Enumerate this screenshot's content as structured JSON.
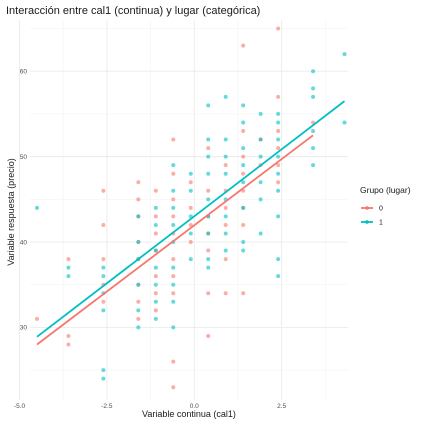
{
  "chart_data": {
    "type": "scatter",
    "title": "Interacción entre cal1 (continua) y lugar (categórica)",
    "xlabel": "Variable continua (cal1)",
    "ylabel": "Variable respuesta (precio)",
    "xlim": [
      -4.7,
      4.4
    ],
    "ylim": [
      21.5,
      66
    ],
    "x_ticks": [
      -5.0,
      -2.5,
      0.0,
      2.5
    ],
    "x_tick_labels": [
      "-5.0",
      "-2.5",
      "0.0",
      "2.5"
    ],
    "y_ticks": [
      30,
      40,
      50,
      60
    ],
    "y_tick_labels": [
      "30",
      "40",
      "50",
      "60"
    ],
    "grid": true,
    "legend": {
      "title": "Grupo (lugar)",
      "position": "right",
      "entries": [
        "0",
        "1"
      ]
    },
    "series": [
      {
        "name": "0",
        "color": "#F8766D",
        "points": [
          [
            -4.5,
            31
          ],
          [
            -3.6,
            29
          ],
          [
            -3.6,
            28
          ],
          [
            -3.6,
            38
          ],
          [
            -2.6,
            46
          ],
          [
            -2.6,
            42
          ],
          [
            -2.6,
            38
          ],
          [
            -2.6,
            35
          ],
          [
            -2.6,
            33
          ],
          [
            -1.6,
            47
          ],
          [
            -1.6,
            45
          ],
          [
            -1.6,
            43
          ],
          [
            -1.6,
            40
          ],
          [
            -1.6,
            38
          ],
          [
            -1.6,
            35
          ],
          [
            -1.6,
            33
          ],
          [
            -1.6,
            31
          ],
          [
            -1.1,
            46
          ],
          [
            -1.1,
            43
          ],
          [
            -1.1,
            41
          ],
          [
            -1.1,
            39
          ],
          [
            -1.1,
            36
          ],
          [
            -1.1,
            34
          ],
          [
            -1.1,
            32
          ],
          [
            -0.6,
            52
          ],
          [
            -0.6,
            48
          ],
          [
            -0.6,
            45
          ],
          [
            -0.6,
            43
          ],
          [
            -0.6,
            41
          ],
          [
            -0.6,
            38
          ],
          [
            -0.6,
            36
          ],
          [
            -0.6,
            34
          ],
          [
            -0.6,
            26
          ],
          [
            -0.6,
            23
          ],
          [
            -0.1,
            47
          ],
          [
            -0.1,
            44
          ],
          [
            -0.1,
            42
          ],
          [
            -0.1,
            40
          ],
          [
            0.4,
            51
          ],
          [
            0.4,
            46
          ],
          [
            0.4,
            43
          ],
          [
            0.4,
            41
          ],
          [
            0.4,
            39
          ],
          [
            0.4,
            34
          ],
          [
            0.4,
            29
          ],
          [
            0.9,
            49
          ],
          [
            0.9,
            46
          ],
          [
            0.9,
            44
          ],
          [
            0.9,
            42
          ],
          [
            0.9,
            38
          ],
          [
            0.9,
            34
          ],
          [
            1.4,
            63
          ],
          [
            1.4,
            53
          ],
          [
            1.4,
            50
          ],
          [
            1.4,
            48
          ],
          [
            1.4,
            46
          ],
          [
            1.4,
            44
          ],
          [
            1.4,
            42
          ],
          [
            1.4,
            34
          ],
          [
            1.9,
            52
          ],
          [
            1.9,
            49
          ],
          [
            2.4,
            65
          ],
          [
            2.4,
            57
          ],
          [
            2.4,
            53
          ],
          [
            2.4,
            51
          ],
          [
            2.4,
            49
          ],
          [
            2.4,
            47
          ],
          [
            3.4,
            54
          ]
        ]
      },
      {
        "name": "1",
        "color": "#00BFC4",
        "points": [
          [
            -4.5,
            44
          ],
          [
            -3.6,
            36
          ],
          [
            -3.6,
            37
          ],
          [
            -2.6,
            37
          ],
          [
            -2.6,
            36
          ],
          [
            -2.6,
            34
          ],
          [
            -2.6,
            32
          ],
          [
            -2.6,
            25
          ],
          [
            -2.6,
            24
          ],
          [
            -1.6,
            43
          ],
          [
            -1.6,
            40
          ],
          [
            -1.6,
            38
          ],
          [
            -1.6,
            35
          ],
          [
            -1.6,
            32
          ],
          [
            -1.6,
            30
          ],
          [
            -1.1,
            44
          ],
          [
            -1.1,
            42
          ],
          [
            -1.1,
            39
          ],
          [
            -1.1,
            37
          ],
          [
            -1.1,
            35
          ],
          [
            -1.1,
            33
          ],
          [
            -1.1,
            31
          ],
          [
            -0.6,
            49
          ],
          [
            -0.6,
            46
          ],
          [
            -0.6,
            44
          ],
          [
            -0.6,
            42
          ],
          [
            -0.6,
            40
          ],
          [
            -0.6,
            37
          ],
          [
            -0.6,
            35
          ],
          [
            -0.6,
            33
          ],
          [
            -0.6,
            30
          ],
          [
            -0.1,
            48
          ],
          [
            -0.1,
            46
          ],
          [
            -0.1,
            43
          ],
          [
            -0.1,
            41
          ],
          [
            -0.1,
            38
          ],
          [
            0.4,
            56
          ],
          [
            0.4,
            52
          ],
          [
            0.4,
            50
          ],
          [
            0.4,
            48
          ],
          [
            0.4,
            45
          ],
          [
            0.4,
            43
          ],
          [
            0.4,
            41
          ],
          [
            0.4,
            38
          ],
          [
            0.4,
            37
          ],
          [
            0.9,
            57
          ],
          [
            0.9,
            52
          ],
          [
            0.9,
            50
          ],
          [
            0.9,
            48
          ],
          [
            0.9,
            45
          ],
          [
            0.9,
            43
          ],
          [
            0.9,
            41
          ],
          [
            0.9,
            39
          ],
          [
            1.4,
            56
          ],
          [
            1.4,
            54
          ],
          [
            1.4,
            51
          ],
          [
            1.4,
            49
          ],
          [
            1.4,
            47
          ],
          [
            1.4,
            44
          ],
          [
            1.4,
            40
          ],
          [
            1.4,
            39
          ],
          [
            1.9,
            55
          ],
          [
            1.9,
            52
          ],
          [
            1.9,
            50
          ],
          [
            1.9,
            47
          ],
          [
            1.9,
            45
          ],
          [
            1.9,
            41
          ],
          [
            2.4,
            55
          ],
          [
            2.4,
            54
          ],
          [
            2.4,
            52
          ],
          [
            2.4,
            50
          ],
          [
            2.4,
            48
          ],
          [
            2.4,
            46
          ],
          [
            2.4,
            43
          ],
          [
            2.4,
            38
          ],
          [
            2.4,
            36
          ],
          [
            3.4,
            60
          ],
          [
            3.4,
            58
          ],
          [
            3.4,
            57
          ],
          [
            3.4,
            53
          ],
          [
            3.4,
            51
          ],
          [
            3.4,
            49
          ],
          [
            4.3,
            62
          ],
          [
            4.3,
            54
          ]
        ]
      }
    ],
    "fit_lines": [
      {
        "name": "0",
        "color": "#F8766D",
        "x": [
          -4.5,
          3.4
        ],
        "y": [
          28.0,
          52.5
        ]
      },
      {
        "name": "1",
        "color": "#00BFC4",
        "x": [
          -4.5,
          4.3
        ],
        "y": [
          28.9,
          56.5
        ]
      }
    ]
  }
}
